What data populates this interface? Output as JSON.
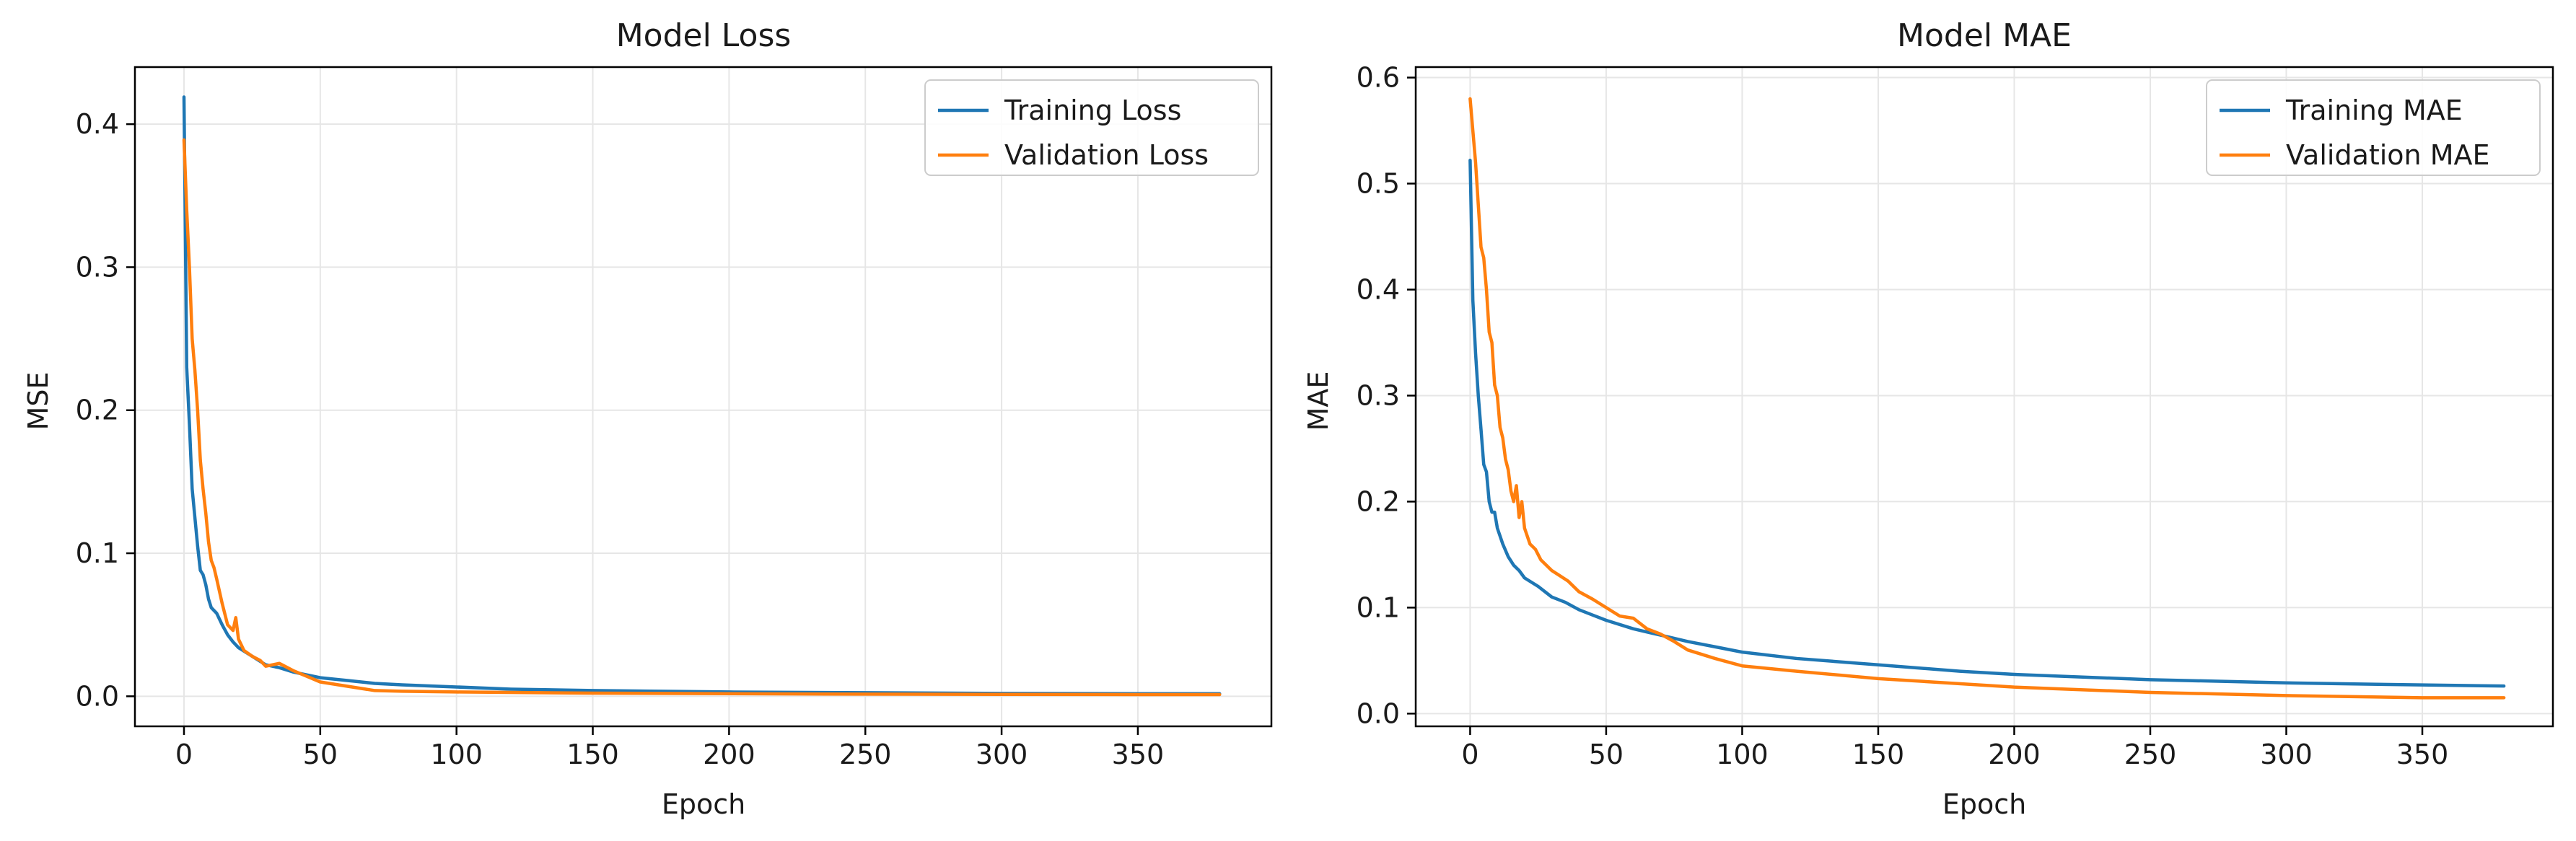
{
  "chart_data": [
    {
      "type": "line",
      "title": "Model Loss",
      "xlabel": "Epoch",
      "ylabel": "MSE",
      "xlim": [
        -18,
        399
      ],
      "ylim": [
        -0.021,
        0.4399
      ],
      "xticks": [
        0,
        50,
        100,
        150,
        200,
        250,
        300,
        350
      ],
      "yticks": [
        0.0,
        0.1,
        0.2,
        0.3,
        0.4
      ],
      "ytick_decimals": 1,
      "grid": true,
      "legend_position": "top-right",
      "series": [
        {
          "name": "Training Loss",
          "color": "#1f77b4",
          "x": [
            0,
            1,
            2,
            3,
            4,
            5,
            6,
            7,
            8,
            9,
            10,
            12,
            14,
            16,
            18,
            20,
            25,
            30,
            35,
            40,
            50,
            60,
            70,
            80,
            100,
            120,
            150,
            200,
            250,
            300,
            350,
            380
          ],
          "y": [
            0.419,
            0.23,
            0.19,
            0.145,
            0.125,
            0.105,
            0.088,
            0.085,
            0.078,
            0.068,
            0.062,
            0.058,
            0.05,
            0.043,
            0.038,
            0.034,
            0.028,
            0.022,
            0.02,
            0.017,
            0.013,
            0.011,
            0.009,
            0.008,
            0.0065,
            0.005,
            0.004,
            0.003,
            0.0025,
            0.002,
            0.0018,
            0.0018
          ]
        },
        {
          "name": "Validation Loss",
          "color": "#ff7f0e",
          "x": [
            0,
            1,
            2,
            3,
            4,
            5,
            6,
            7,
            8,
            9,
            10,
            11,
            12,
            14,
            16,
            18,
            19,
            20,
            22,
            25,
            28,
            30,
            35,
            40,
            45,
            50,
            60,
            70,
            80,
            100,
            150,
            200,
            250,
            300,
            350,
            380
          ],
          "y": [
            0.389,
            0.34,
            0.3,
            0.25,
            0.228,
            0.2,
            0.165,
            0.145,
            0.128,
            0.108,
            0.095,
            0.09,
            0.082,
            0.065,
            0.05,
            0.046,
            0.055,
            0.04,
            0.032,
            0.028,
            0.025,
            0.021,
            0.023,
            0.018,
            0.014,
            0.01,
            0.007,
            0.004,
            0.0035,
            0.003,
            0.0022,
            0.0018,
            0.0015,
            0.0013,
            0.0012,
            0.0012
          ]
        }
      ]
    },
    {
      "type": "line",
      "title": "Model MAE",
      "xlabel": "Epoch",
      "ylabel": "MAE",
      "xlim": [
        -20,
        398
      ],
      "ylim": [
        -0.012,
        0.6099
      ],
      "xticks": [
        0,
        50,
        100,
        150,
        200,
        250,
        300,
        350
      ],
      "yticks": [
        0.0,
        0.1,
        0.2,
        0.3,
        0.4,
        0.5,
        0.6
      ],
      "ytick_decimals": 1,
      "grid": true,
      "legend_position": "top-right",
      "series": [
        {
          "name": "Training MAE",
          "color": "#1f77b4",
          "x": [
            0,
            1,
            2,
            3,
            4,
            5,
            6,
            7,
            8,
            9,
            10,
            12,
            14,
            16,
            18,
            20,
            25,
            30,
            35,
            40,
            45,
            50,
            60,
            70,
            80,
            90,
            100,
            120,
            150,
            180,
            200,
            250,
            300,
            350,
            380
          ],
          "y": [
            0.522,
            0.39,
            0.34,
            0.3,
            0.268,
            0.235,
            0.228,
            0.2,
            0.19,
            0.19,
            0.175,
            0.16,
            0.148,
            0.14,
            0.135,
            0.128,
            0.12,
            0.11,
            0.105,
            0.098,
            0.093,
            0.088,
            0.08,
            0.074,
            0.068,
            0.063,
            0.058,
            0.052,
            0.046,
            0.04,
            0.037,
            0.032,
            0.029,
            0.027,
            0.026
          ]
        },
        {
          "name": "Validation MAE",
          "color": "#ff7f0e",
          "x": [
            0,
            1,
            2,
            3,
            4,
            5,
            6,
            7,
            8,
            9,
            10,
            11,
            12,
            13,
            14,
            15,
            16,
            17,
            18,
            19,
            20,
            22,
            24,
            26,
            28,
            30,
            33,
            36,
            40,
            45,
            50,
            55,
            60,
            65,
            70,
            75,
            80,
            90,
            100,
            120,
            150,
            200,
            250,
            300,
            350,
            380
          ],
          "y": [
            0.58,
            0.55,
            0.52,
            0.48,
            0.44,
            0.43,
            0.4,
            0.36,
            0.35,
            0.31,
            0.3,
            0.27,
            0.26,
            0.24,
            0.23,
            0.21,
            0.2,
            0.215,
            0.185,
            0.2,
            0.175,
            0.16,
            0.155,
            0.145,
            0.14,
            0.135,
            0.13,
            0.125,
            0.115,
            0.108,
            0.1,
            0.092,
            0.09,
            0.08,
            0.075,
            0.068,
            0.06,
            0.052,
            0.045,
            0.04,
            0.033,
            0.025,
            0.02,
            0.017,
            0.015,
            0.015
          ]
        }
      ]
    }
  ]
}
